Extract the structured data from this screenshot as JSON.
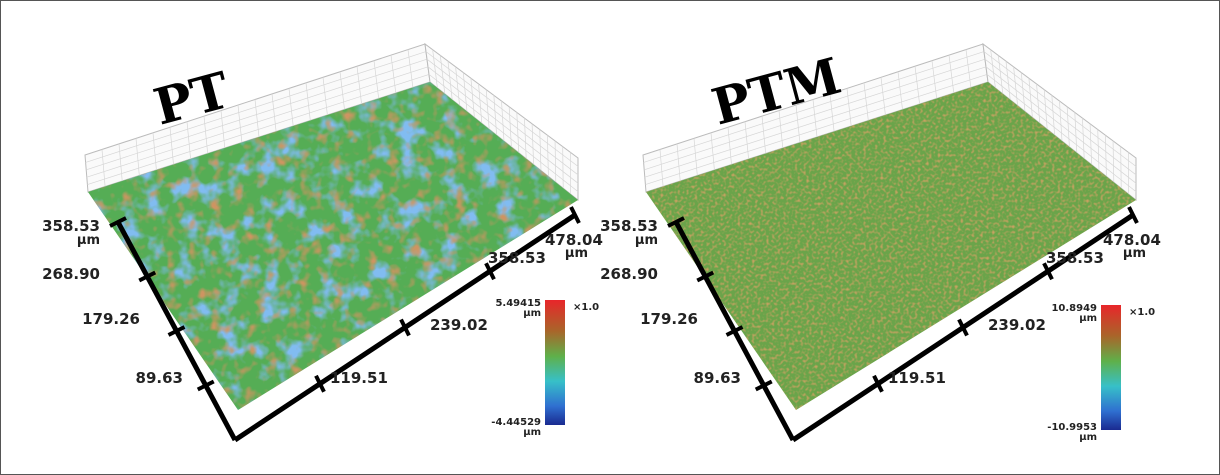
{
  "panels": [
    {
      "title": "PT",
      "y_labels": [
        "89.63",
        "179.26",
        "268.90",
        "358.53"
      ],
      "y_unit": "µm",
      "x_labels": [
        "119.51",
        "239.02",
        "358.53",
        "478.04"
      ],
      "x_unit": "µm",
      "colorbar": {
        "max": "5.49415",
        "max_unit": "µm",
        "min": "-4.44529",
        "min_unit": "µm",
        "scale": "×1.0"
      }
    },
    {
      "title": "PTM",
      "y_labels": [
        "89.63",
        "179.26",
        "268.90",
        "358.53"
      ],
      "y_unit": "µm",
      "x_labels": [
        "119.51",
        "239.02",
        "358.53",
        "478.04"
      ],
      "x_unit": "µm",
      "colorbar": {
        "max": "10.8949",
        "max_unit": "µm",
        "min": "-10.9953",
        "min_unit": "µm",
        "scale": "×1.0"
      }
    }
  ]
}
